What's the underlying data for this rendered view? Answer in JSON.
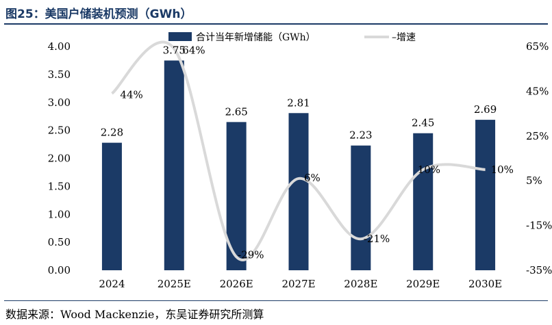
{
  "title": "图25：美国户储装机预测（GWh）",
  "source": "数据来源：Wood Mackenzie，东吴证券研究所测算",
  "chart_data": {
    "type": "bar",
    "categories": [
      "2024",
      "2025E",
      "2026E",
      "2027E",
      "2028E",
      "2029E",
      "2030E"
    ],
    "series": [
      {
        "name": "合计当年新增储能（GWh）",
        "type": "bar",
        "axis": "left",
        "values": [
          2.28,
          3.75,
          2.65,
          2.81,
          2.23,
          2.45,
          2.69
        ],
        "labels": [
          "2.28",
          "3.75",
          "2.65",
          "2.81",
          "2.23",
          "2.45",
          "2.69"
        ],
        "color": "#1b3a66"
      },
      {
        "name": "增速",
        "type": "line",
        "axis": "right",
        "smooth": true,
        "values": [
          44,
          64,
          -29,
          6,
          -21,
          10,
          10
        ],
        "labels": [
          "44%",
          "64%",
          "-29%",
          "6%",
          "-21%",
          "10%",
          "10%"
        ],
        "color": "#d9d9d9"
      }
    ],
    "left_axis": {
      "min": 0,
      "max": 4,
      "ticks": [
        "0.00",
        "0.50",
        "1.00",
        "1.50",
        "2.00",
        "2.50",
        "3.00",
        "3.50",
        "4.00"
      ]
    },
    "right_axis": {
      "min": -35,
      "max": 65,
      "ticks": [
        "-35%",
        "-15%",
        "5%",
        "25%",
        "45%",
        "65%"
      ]
    },
    "legend_position": "top",
    "grid": false
  }
}
